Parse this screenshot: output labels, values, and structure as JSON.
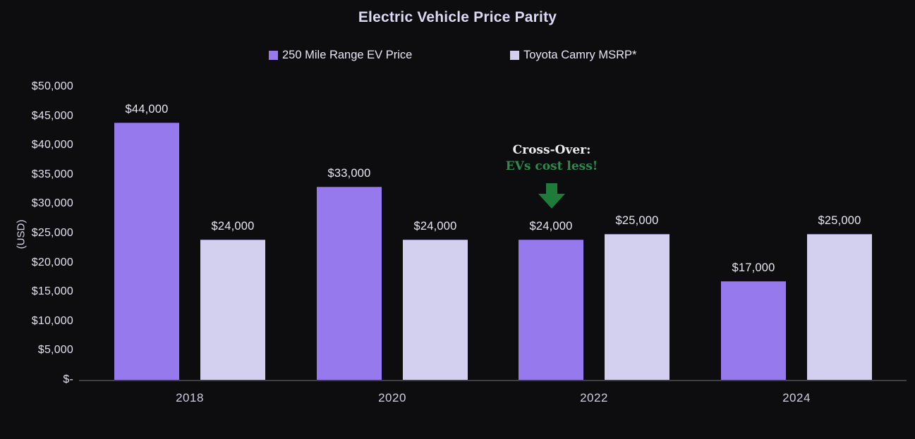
{
  "title": "Electric Vehicle Price Parity",
  "legend": {
    "items": [
      {
        "label": "250 Mile Range EV Price",
        "color": "#9579ed"
      },
      {
        "label": "Toyota Camry MSRP*",
        "color": "#d2d0ee"
      }
    ]
  },
  "y_axis": {
    "title": "(USD)",
    "ticks": [
      {
        "value": 50000,
        "text": "$50,000"
      },
      {
        "value": 45000,
        "text": "$45,000"
      },
      {
        "value": 40000,
        "text": "$40,000"
      },
      {
        "value": 35000,
        "text": "$35,000"
      },
      {
        "value": 30000,
        "text": "$30,000"
      },
      {
        "value": 25000,
        "text": "$25,000"
      },
      {
        "value": 20000,
        "text": "$20,000"
      },
      {
        "value": 15000,
        "text": "$15,000"
      },
      {
        "value": 10000,
        "text": "$10,000"
      },
      {
        "value": 5000,
        "text": "$5,000"
      },
      {
        "value": 0,
        "text": "$-"
      }
    ]
  },
  "annotation": {
    "line1": "Cross-Over:",
    "line2": "EVs cost less!",
    "line1_color": "#ecebee",
    "line2_color": "#2e8b4d",
    "arrow_color": "#1e7c3b",
    "arrow_icon": "down-block-arrow"
  },
  "colors": {
    "background": "#0d0c0f",
    "ev_bar": "#9579ed",
    "camry_bar": "#d2d0ee",
    "axis_line": "#3f3e42",
    "title_text": "#dcd9f2",
    "tick_text": "#e4e2ee"
  },
  "chart_data": {
    "type": "bar",
    "title": "Electric Vehicle Price Parity",
    "categories": [
      "2018",
      "2020",
      "2022",
      "2024"
    ],
    "series": [
      {
        "name": "250 Mile Range EV Price",
        "color": "#9579ed",
        "values": [
          44000,
          33000,
          24000,
          17000
        ],
        "data_labels": [
          "$44,000",
          "$33,000",
          "$24,000",
          "$17,000"
        ]
      },
      {
        "name": "Toyota Camry MSRP*",
        "color": "#d2d0ee",
        "values": [
          24000,
          24000,
          25000,
          25000
        ],
        "data_labels": [
          "$24,000",
          "$24,000",
          "$25,000",
          "$25,000"
        ]
      }
    ],
    "xlabel": "",
    "ylabel": "(USD)",
    "ylim": [
      0,
      50000
    ],
    "ytick_step": 5000,
    "grid": false,
    "legend_position": "top",
    "annotation": {
      "text": [
        "Cross-Over:",
        "EVs cost less!"
      ],
      "arrow": "down",
      "target": {
        "category": "2022",
        "series": "250 Mile Range EV Price"
      }
    }
  }
}
